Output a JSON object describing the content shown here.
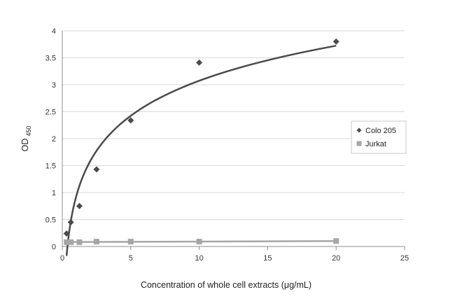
{
  "chart_data": {
    "type": "scatter",
    "title": "",
    "xlabel": "Concentration of whole cell extracts (μg/mL)",
    "ylabel": "OD",
    "ylabel_subscript": "450",
    "xlim": [
      0,
      25
    ],
    "ylim": [
      0,
      4
    ],
    "xticks": [
      0,
      5,
      10,
      15,
      20,
      25
    ],
    "yticks": [
      0,
      0.5,
      1,
      1.5,
      2,
      2.5,
      3,
      3.5,
      4
    ],
    "grid": "horizontal",
    "legend_position": "right",
    "series": [
      {
        "name": "Colo 205",
        "marker": "diamond",
        "color": "#4a4a4a",
        "trendline": "logarithmic",
        "x": [
          0.3125,
          0.625,
          1.25,
          2.5,
          5,
          10,
          20
        ],
        "y": [
          0.24,
          0.45,
          0.75,
          1.43,
          2.34,
          3.41,
          3.8
        ]
      },
      {
        "name": "Jurkat",
        "marker": "square",
        "color": "#a6a6a6",
        "trendline": "linear",
        "x": [
          0.3125,
          0.625,
          1.25,
          2.5,
          5,
          10,
          20
        ],
        "y": [
          0.08,
          0.08,
          0.08,
          0.09,
          0.09,
          0.09,
          0.1
        ]
      }
    ]
  }
}
